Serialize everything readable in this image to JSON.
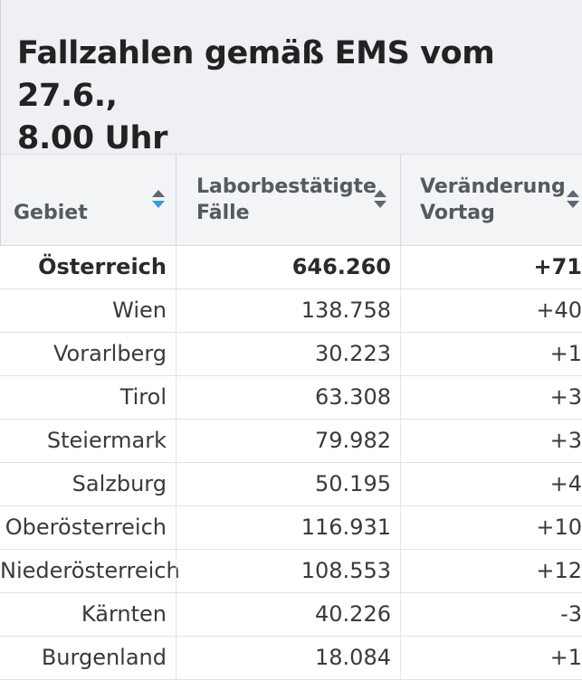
{
  "header": {
    "title": "Fallzahlen gemäß EMS vom 27.6.,\n8.00 Uhr"
  },
  "table": {
    "columns": [
      {
        "label": "Gebiet",
        "sort_state": "descending"
      },
      {
        "label": "Laborbestätigte\nFälle",
        "sort_state": "none"
      },
      {
        "label": "Veränderung\nVortag",
        "sort_state": "none"
      }
    ],
    "rows": [
      {
        "gebiet": "Österreich",
        "faelle": "646.260",
        "veraenderung": "+71"
      },
      {
        "gebiet": "Wien",
        "faelle": "138.758",
        "veraenderung": "+40"
      },
      {
        "gebiet": "Vorarlberg",
        "faelle": "30.223",
        "veraenderung": "+1"
      },
      {
        "gebiet": "Tirol",
        "faelle": "63.308",
        "veraenderung": "+3"
      },
      {
        "gebiet": "Steiermark",
        "faelle": "79.982",
        "veraenderung": "+3"
      },
      {
        "gebiet": "Salzburg",
        "faelle": "50.195",
        "veraenderung": "+4"
      },
      {
        "gebiet": "Oberösterreich",
        "faelle": "116.931",
        "veraenderung": "+10"
      },
      {
        "gebiet": "Niederösterreich",
        "faelle": "108.553",
        "veraenderung": "+12"
      },
      {
        "gebiet": "Kärnten",
        "faelle": "40.226",
        "veraenderung": "-3"
      },
      {
        "gebiet": "Burgenland",
        "faelle": "18.084",
        "veraenderung": "+1"
      }
    ]
  },
  "colors": {
    "sort_active": "#3b9ad9",
    "sort_inactive": "#5f6770",
    "header_bg": "#eef0f3"
  }
}
